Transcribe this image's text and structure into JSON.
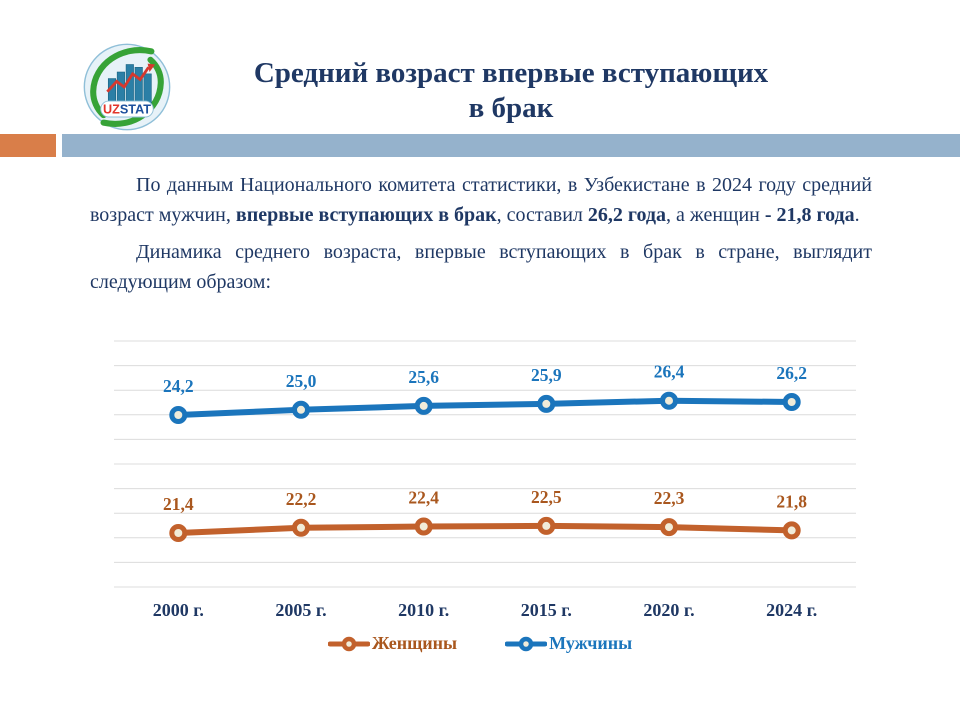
{
  "header": {
    "title_line1": "Средний возраст впервые вступающих",
    "title_line2": "в брак"
  },
  "logo": {
    "uz": "UZ",
    "stat": "STAT",
    "uz_color": "#E2352B",
    "stat_color": "#1C4F9C"
  },
  "paragraphs": {
    "p1": [
      {
        "t": "По данным Национального комитета статистики, в Узбекистане в 2024 году средний возраст мужчин, ",
        "b": false
      },
      {
        "t": "впервые вступающих в брак",
        "b": true
      },
      {
        "t": ", составил ",
        "b": false
      },
      {
        "t": "26,2 года",
        "b": true
      },
      {
        "t": ", а женщин ",
        "b": false
      },
      {
        "t": "- 21,8 года",
        "b": true
      },
      {
        "t": ".",
        "b": false
      }
    ],
    "p2": [
      {
        "t": "Динамика среднего возраста, впервые вступающих в брак в стране, выглядит следующим образом:",
        "b": false
      }
    ]
  },
  "chart_data": {
    "type": "line",
    "title": "",
    "categories": [
      "2000 г.",
      "2005 г.",
      "2010 г.",
      "2015 г.",
      "2020 г.",
      "2024 г."
    ],
    "series": [
      {
        "id": "women",
        "name": "Женщины",
        "values": [
          21.4,
          22.2,
          22.4,
          22.5,
          22.3,
          21.8
        ],
        "labels": [
          "21,4",
          "22,2",
          "22,4",
          "22,5",
          "22,3",
          "21,8"
        ],
        "color": "#C2612C",
        "label_color": "#A9571E"
      },
      {
        "id": "men",
        "name": "Мужчины",
        "values": [
          24.2,
          25.0,
          25.6,
          25.9,
          26.4,
          26.2
        ],
        "labels": [
          "24,2",
          "25,0",
          "25,6",
          "25,9",
          "26,4",
          "26,2"
        ],
        "color": "#1B75BC",
        "label_color": "#1B75BC"
      }
    ],
    "legend": [
      {
        "id": "women",
        "label": "Женщины"
      },
      {
        "id": "men",
        "label": "Мужчины"
      }
    ],
    "grid": true,
    "legend_position": "bottom",
    "grid_color": "#DCDCDC",
    "marker_fill": "#F1ECD9",
    "axis_label_color": "#1F3864"
  },
  "colors": {
    "navy": "#1F3864",
    "band_orange": "#D97E49",
    "band_blue": "#95B2CC"
  }
}
